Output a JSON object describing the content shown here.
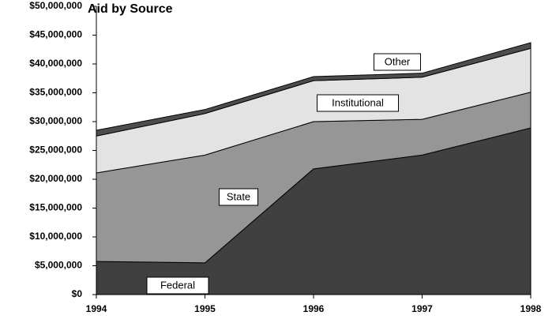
{
  "chart_data": {
    "type": "stacked_area",
    "title": "Aid by Source",
    "categories": [
      "1994",
      "1995",
      "1996",
      "1997",
      "1998"
    ],
    "series": [
      {
        "name": "Federal",
        "color": "#404040",
        "values": [
          5750000,
          5500000,
          21800000,
          24200000,
          28900000
        ]
      },
      {
        "name": "State",
        "color": "#969696",
        "values": [
          15350000,
          18700000,
          8200000,
          6200000,
          6200000
        ]
      },
      {
        "name": "Institutional",
        "color": "#e3e3e3",
        "values": [
          6400000,
          7200000,
          7100000,
          7300000,
          7600000
        ]
      },
      {
        "name": "Other",
        "color": "#4d4d4d",
        "values": [
          1000000,
          700000,
          700000,
          700000,
          1000000
        ]
      }
    ],
    "ylim": [
      0,
      50000000
    ],
    "yticks": [
      {
        "value": 0,
        "label": "$0"
      },
      {
        "value": 5000000,
        "label": "$5,000,000"
      },
      {
        "value": 10000000,
        "label": "$10,000,000"
      },
      {
        "value": 15000000,
        "label": "$15,000,000"
      },
      {
        "value": 20000000,
        "label": "$20,000,000"
      },
      {
        "value": 25000000,
        "label": "$25,000,000"
      },
      {
        "value": 30000000,
        "label": "$30,000,000"
      },
      {
        "value": 35000000,
        "label": "$35,000,000"
      },
      {
        "value": 40000000,
        "label": "$40,000,000"
      },
      {
        "value": 45000000,
        "label": "$45,000,000"
      },
      {
        "value": 50000000,
        "label": "$50,000,000"
      }
    ],
    "grid": false
  }
}
